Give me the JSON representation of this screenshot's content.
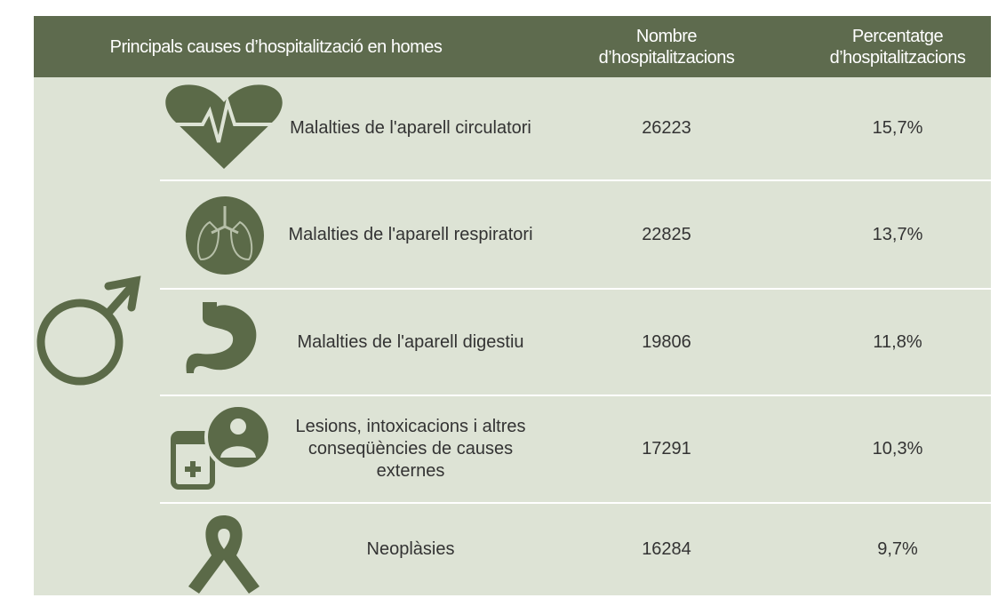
{
  "header": {
    "columns": [
      "Principals causes d’hospitalització en homes",
      "Nombre d’hospitalitzacions",
      "Percentatge d’hospitalitzacions"
    ]
  },
  "rows": [
    {
      "cause": "Malalties de l'aparell circulatori",
      "count": 26223,
      "percentage": "15,7%"
    },
    {
      "cause": "Malalties de l'aparell respiratori",
      "count": 22825,
      "percentage": "13,7%"
    },
    {
      "cause": "Malalties de l'aparell digestiu",
      "count": 19806,
      "percentage": "11,8%"
    },
    {
      "cause": "Lesions, intoxicacions i altres conseqüències de causes externes",
      "count": 17291,
      "percentage": "10,3%"
    },
    {
      "cause": "Neoplàsies",
      "count": 16284,
      "percentage": "9,7%"
    }
  ]
}
